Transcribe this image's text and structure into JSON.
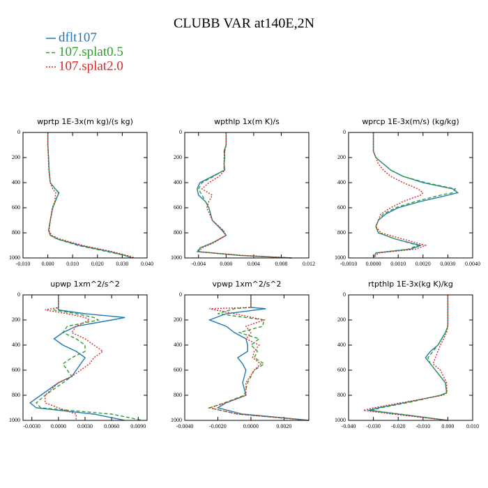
{
  "title": "CLUBB VAR at140E,2N",
  "legend": [
    {
      "name": "dflt107",
      "color": "#1f77b4",
      "style": "solid"
    },
    {
      "name": "107.splat0.5",
      "color": "#2ca02c",
      "style": "dashed"
    },
    {
      "name": "107.splat2.0",
      "color": "#d62728",
      "style": "dotted"
    }
  ],
  "chart_data": [
    {
      "type": "line",
      "title": "wprtp  1E-3x(m kg)/(s kg)",
      "xlim": [
        -0.01,
        0.04
      ],
      "xticks": [
        {
          "value": -0.01,
          "label": "-0.010"
        },
        {
          "value": 0,
          "label": "0.000"
        },
        {
          "value": 0.01,
          "label": "0.010"
        },
        {
          "value": 0.02,
          "label": "0.020"
        },
        {
          "value": 0.03,
          "label": "0.030"
        },
        {
          "value": 0.04,
          "label": "0.040"
        }
      ],
      "ylim": [
        1000,
        0
      ],
      "yticks": [
        0,
        200,
        400,
        600,
        800,
        1000
      ],
      "levels": [
        0,
        100,
        200,
        300,
        400,
        450,
        480,
        550,
        600,
        700,
        780,
        820,
        850,
        900,
        950,
        980,
        1000
      ],
      "series": [
        {
          "values": [
            0,
            0,
            0.0003,
            0.0005,
            0.001,
            0.003,
            0.0045,
            0.003,
            0.002,
            0.001,
            0.0003,
            0.001,
            0.004,
            0.013,
            0.025,
            0.031,
            0.034
          ]
        },
        {
          "values": [
            0,
            0,
            0.0003,
            0.0005,
            0.001,
            0.003,
            0.0043,
            0.003,
            0.002,
            0.001,
            0.0003,
            0.001,
            0.0038,
            0.012,
            0.024,
            0.031,
            0.034
          ]
        },
        {
          "values": [
            0,
            0,
            0.0002,
            0.0004,
            0.001,
            0.002,
            0.0032,
            0.0028,
            0.0018,
            0.001,
            0.0005,
            0.0015,
            0.005,
            0.014,
            0.026,
            0.032,
            0.035
          ]
        }
      ]
    },
    {
      "type": "line",
      "title": "wpthlp  1x(m K)/s",
      "xlim": [
        -0.006,
        0.012
      ],
      "xticks": [
        {
          "value": -0.004,
          "label": "-0.004"
        },
        {
          "value": 0,
          "label": "0.000"
        },
        {
          "value": 0.004,
          "label": "0.004"
        },
        {
          "value": 0.008,
          "label": "0.008"
        },
        {
          "value": 0.012,
          "label": "0.012"
        }
      ],
      "ylim": [
        1000,
        0
      ],
      "yticks": [
        0,
        200,
        400,
        600,
        800,
        1000
      ],
      "levels": [
        0,
        100,
        150,
        200,
        250,
        300,
        350,
        400,
        450,
        500,
        550,
        600,
        700,
        780,
        820,
        880,
        920,
        950,
        980,
        1000
      ],
      "series": [
        {
          "values": [
            0,
            0,
            -0.0003,
            -0.0002,
            -0.0003,
            -0.0002,
            -0.002,
            -0.0038,
            -0.0042,
            -0.004,
            -0.003,
            -0.0025,
            -0.002,
            -0.0006,
            0,
            -0.002,
            -0.0038,
            -0.004,
            0.002,
            0.0095
          ]
        },
        {
          "values": [
            0,
            0,
            -0.0002,
            -0.0002,
            -0.0003,
            -0.0003,
            -0.0018,
            -0.0035,
            -0.004,
            -0.0035,
            -0.003,
            -0.0025,
            -0.002,
            -0.0005,
            0,
            -0.002,
            -0.0038,
            -0.0042,
            0.002,
            0.0095
          ]
        },
        {
          "values": [
            0,
            0,
            -0.0002,
            -0.0003,
            -0.0003,
            -0.0002,
            -0.001,
            -0.0025,
            -0.0035,
            -0.002,
            -0.0025,
            -0.0028,
            -0.002,
            -0.0004,
            0,
            -0.0018,
            -0.0035,
            -0.004,
            0.0025,
            0.0095
          ]
        }
      ]
    },
    {
      "type": "line",
      "title": "wprcp  1E-3x(m/s) (kg/kg)",
      "xlim": [
        -0.001,
        0.004
      ],
      "xticks": [
        {
          "value": -0.001,
          "label": "-0.0010"
        },
        {
          "value": 0,
          "label": "0.0000"
        },
        {
          "value": 0.001,
          "label": "0.0010"
        },
        {
          "value": 0.002,
          "label": "0.0020"
        },
        {
          "value": 0.003,
          "label": "0.0030"
        },
        {
          "value": 0.004,
          "label": "0.0040"
        }
      ],
      "ylim": [
        1000,
        0
      ],
      "yticks": [
        0,
        200,
        400,
        600,
        800,
        1000
      ],
      "levels": [
        0,
        150,
        200,
        250,
        300,
        350,
        400,
        450,
        480,
        500,
        550,
        600,
        650,
        700,
        750,
        800,
        850,
        900,
        930,
        960,
        1000
      ],
      "series": [
        {
          "values": [
            0,
            0,
            0.0001,
            0.0004,
            0.0007,
            0.0012,
            0.002,
            0.0032,
            0.0034,
            0.003,
            0.0019,
            0.001,
            0.0005,
            0.0002,
            0.0001,
            0.0002,
            0.0009,
            0.0019,
            0.0015,
            0.0001,
            0
          ]
        },
        {
          "values": [
            0,
            0,
            0.0001,
            0.0004,
            0.0007,
            0.0012,
            0.0021,
            0.0033,
            0.0032,
            0.0027,
            0.0017,
            0.0009,
            0.0004,
            0.0002,
            0.0001,
            0.0002,
            0.0009,
            0.0018,
            0.0014,
            0.0001,
            0
          ]
        },
        {
          "values": [
            0,
            0,
            0.0001,
            0.0002,
            0.0004,
            0.0007,
            0.0012,
            0.0018,
            0.002,
            0.0019,
            0.0012,
            0.0007,
            0.0003,
            0.0002,
            0.0001,
            0.0003,
            0.0012,
            0.0021,
            0.0017,
            0.0002,
            0
          ]
        }
      ]
    },
    {
      "type": "line",
      "title": "upwp  1xm^2/s^2",
      "xlim": [
        -0.004,
        0.01
      ],
      "xticks": [
        {
          "value": -0.003,
          "label": "-0.0030"
        },
        {
          "value": 0,
          "label": "0.0000"
        },
        {
          "value": 0.003,
          "label": "0.0030"
        },
        {
          "value": 0.006,
          "label": "0.0060"
        },
        {
          "value": 0.009,
          "label": "0.0090"
        }
      ],
      "ylim": [
        1000,
        0
      ],
      "yticks": [
        0,
        200,
        400,
        600,
        800,
        1000
      ],
      "levels": [
        0,
        100,
        120,
        150,
        180,
        200,
        250,
        300,
        350,
        400,
        450,
        500,
        550,
        650,
        700,
        800,
        860,
        900,
        950,
        1000
      ],
      "series": [
        {
          "values": [
            0,
            0,
            0,
            0.003,
            0.0075,
            0.006,
            0.002,
            0.0005,
            -0.0005,
            0.0005,
            0.002,
            0.003,
            0.0025,
            0.0015,
            0,
            -0.002,
            -0.0032,
            -0.0025,
            0.004,
            0.0075
          ]
        },
        {
          "values": [
            0,
            0,
            -0.0005,
            0.002,
            0.004,
            0.0045,
            0.001,
            0.0005,
            0.002,
            0.003,
            0.003,
            0.0015,
            0.0005,
            0.0015,
            0.0005,
            -0.0015,
            -0.0025,
            -0.002,
            0.006,
            0.0095
          ]
        },
        {
          "values": [
            0,
            0,
            -0.0015,
            0.001,
            0.003,
            0.0035,
            0.002,
            0.0015,
            0.003,
            0.004,
            0.005,
            0.004,
            0.0035,
            0.0015,
            0,
            -0.0015,
            -0.0015,
            0,
            0.002,
            0.002
          ]
        }
      ]
    },
    {
      "type": "line",
      "title": "vpwp  1xm^2/s^2",
      "xlim": [
        -0.004,
        0.0035
      ],
      "xticks": [
        {
          "value": -0.004,
          "label": "-0.0040"
        },
        {
          "value": -0.002,
          "label": "-0.0020"
        },
        {
          "value": 0,
          "label": "0.0000"
        },
        {
          "value": 0.002,
          "label": "0.0020"
        }
      ],
      "ylim": [
        1000,
        0
      ],
      "yticks": [
        0,
        200,
        400,
        600,
        800,
        1000
      ],
      "levels": [
        0,
        100,
        110,
        150,
        200,
        250,
        300,
        350,
        400,
        450,
        500,
        550,
        600,
        700,
        800,
        860,
        900,
        950,
        980,
        1000
      ],
      "series": [
        {
          "values": [
            0,
            0,
            0.0009,
            -0.0015,
            -0.0025,
            -0.0015,
            -0.001,
            -0.0003,
            -0.0002,
            -0.0002,
            -0.0008,
            -0.0005,
            -0.0003,
            -0.0005,
            -0.0003,
            -0.0015,
            -0.002,
            -0.0005,
            0.002,
            0.0035
          ]
        },
        {
          "values": [
            0,
            0,
            -0.001,
            -0.002,
            0.0008,
            0.0007,
            -0.0007,
            0.0005,
            0,
            0.0004,
            0.0002,
            0.0008,
            0.0002,
            -0.0002,
            -0.0004,
            -0.0016,
            -0.0025,
            -0.0008,
            0.0018,
            0.0035
          ]
        },
        {
          "values": [
            0,
            0,
            -0.0025,
            -0.001,
            0.0008,
            -0.0003,
            0,
            -0.0003,
            0.0005,
            0.0002,
            0.0001,
            0.0006,
            0.0002,
            -0.0003,
            -0.0003,
            -0.0015,
            -0.0025,
            -0.0008,
            0.0018,
            0.0035
          ]
        }
      ]
    },
    {
      "type": "line",
      "title": "rtpthlp  1E-3x(kg K)/kg",
      "xlim": [
        -0.04,
        0.01
      ],
      "xticks": [
        {
          "value": -0.04,
          "label": "-0.040"
        },
        {
          "value": -0.03,
          "label": "-0.030"
        },
        {
          "value": -0.02,
          "label": "-0.020"
        },
        {
          "value": -0.01,
          "label": "-0.010"
        },
        {
          "value": 0,
          "label": "0.000"
        },
        {
          "value": 0.01,
          "label": "0.010"
        }
      ],
      "ylim": [
        1000,
        0
      ],
      "yticks": [
        0,
        200,
        400,
        600,
        800,
        1000
      ],
      "levels": [
        0,
        250,
        300,
        400,
        450,
        500,
        550,
        600,
        700,
        780,
        800,
        850,
        900,
        920,
        950,
        1000
      ],
      "series": [
        {
          "values": [
            0,
            0,
            -0.001,
            -0.004,
            -0.007,
            -0.009,
            -0.007,
            -0.005,
            -0.001,
            -0.0005,
            -0.003,
            -0.015,
            -0.028,
            -0.032,
            -0.02,
            0
          ]
        },
        {
          "values": [
            0,
            0,
            -0.001,
            -0.004,
            -0.006,
            -0.008,
            -0.007,
            -0.005,
            -0.001,
            -0.0005,
            -0.003,
            -0.014,
            -0.027,
            -0.031,
            -0.019,
            0
          ]
        },
        {
          "values": [
            0,
            0,
            -0.0005,
            -0.003,
            -0.004,
            -0.005,
            -0.006,
            -0.003,
            -0.0005,
            -0.0003,
            -0.002,
            -0.016,
            -0.03,
            -0.034,
            -0.022,
            0
          ]
        }
      ]
    }
  ]
}
